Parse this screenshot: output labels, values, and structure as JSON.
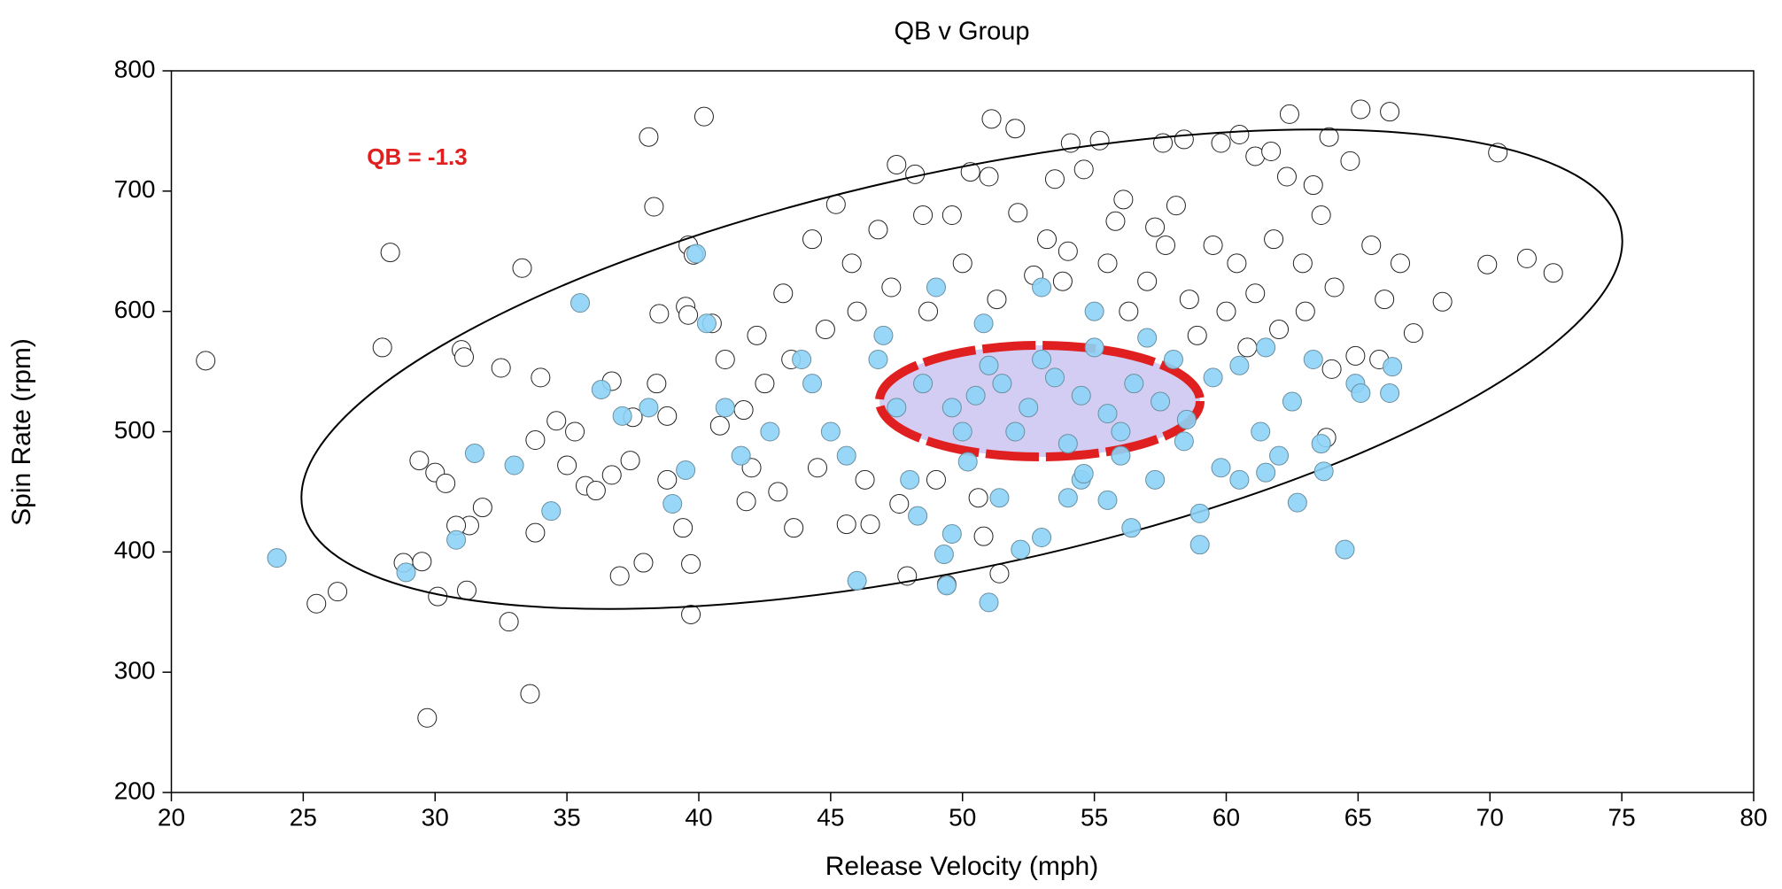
{
  "chart_data": {
    "type": "scatter",
    "title": "QB v Group",
    "xlabel": "Release Velocity (mph)",
    "ylabel": "Spin Rate (rpm)",
    "annotation": "QB = -1.3",
    "xlim": [
      20,
      80
    ],
    "ylim": [
      200,
      800
    ],
    "xticks": [
      20,
      25,
      30,
      35,
      40,
      45,
      50,
      55,
      60,
      65,
      70,
      75,
      80
    ],
    "yticks": [
      200,
      300,
      400,
      500,
      600,
      700,
      800
    ],
    "series": [
      {
        "color": "#ffffff",
        "x": [
          21.3,
          28.3,
          28,
          31,
          31.1,
          33.3,
          29.7,
          33.6,
          25.5,
          26.3,
          32.8,
          30.1,
          29.5,
          28.8,
          31.2,
          38.1,
          40.2,
          38.3,
          39.6,
          39.8,
          51.1,
          52,
          65.1,
          66.2,
          62.4,
          70.3,
          69.9,
          71.4,
          72.4,
          68.2,
          67.1,
          47.5,
          48.2,
          39.7,
          39.7,
          37.9,
          37,
          32.5,
          34,
          29.4,
          30,
          30.4,
          31.8,
          33.8,
          31.3,
          30.8,
          35,
          35.7,
          36.1,
          35.3,
          34.6,
          33.8,
          36.7,
          37.4,
          36.7,
          37.5,
          38.4,
          38.8,
          39.5,
          39.6,
          38.5,
          40.5,
          38.8,
          39.4,
          41.8,
          43.6,
          45.6,
          46.5,
          47.9,
          49.4,
          50.8,
          51.4,
          54.1,
          55.2,
          57.6,
          58.4,
          59.8,
          60.5,
          61.1,
          61.7,
          62.3,
          63.3,
          63.6,
          64.7,
          63.9,
          44.3,
          45.2,
          46.8,
          48.5,
          50.3,
          51,
          52.1,
          53.5,
          54.6,
          56.1,
          57.3,
          58.1,
          59.5,
          60.4,
          61.8,
          62.9,
          64.1,
          65.5,
          66.6,
          65.8,
          64.9,
          64,
          63.8,
          61.1,
          60,
          58.6,
          57,
          55.5,
          54,
          52.7,
          51.3,
          50,
          48.7,
          47.3,
          46,
          44.8,
          43.5,
          42.5,
          41.7,
          40.8,
          42,
          43,
          44.5,
          46.3,
          47.6,
          49,
          50.6,
          53.8,
          56.3,
          58.9,
          60.8,
          62,
          57.7,
          55.8,
          53.2,
          49.6,
          45.8,
          43.2,
          42.2,
          41,
          63,
          66
        ],
        "values": [
          559,
          649,
          570,
          568,
          562,
          636,
          262,
          282,
          357,
          367,
          342,
          363,
          392,
          391,
          368,
          745,
          762,
          687,
          655,
          647,
          760,
          752,
          768,
          766,
          764,
          732,
          639,
          644,
          632,
          608,
          582,
          722,
          714,
          348,
          390,
          391,
          380,
          553,
          545,
          476,
          466,
          457,
          437,
          416,
          422,
          422,
          472,
          455,
          451,
          500,
          509,
          493,
          464,
          476,
          542,
          512,
          540,
          513,
          604,
          597,
          598,
          590,
          460,
          420,
          442,
          420,
          423,
          423,
          380,
          373,
          413,
          382,
          740,
          742,
          740,
          743,
          740,
          747,
          729,
          733,
          712,
          705,
          680,
          725,
          745,
          660,
          689,
          668,
          680,
          716,
          712,
          682,
          710,
          718,
          693,
          670,
          688,
          655,
          640,
          660,
          640,
          620,
          655,
          640,
          560,
          563,
          552,
          495,
          615,
          600,
          610,
          625,
          640,
          650,
          630,
          610,
          640,
          600,
          620,
          600,
          585,
          560,
          540,
          518,
          505,
          470,
          450,
          470,
          460,
          440,
          460,
          445,
          625,
          600,
          580,
          570,
          585,
          655,
          675,
          660,
          680,
          640,
          615,
          580,
          560,
          600,
          610
        ]
      },
      {
        "color": "#8dd3f7",
        "x": [
          24,
          35.5,
          28.9,
          30.8,
          31.5,
          33,
          34.4,
          37.1,
          36.3,
          38.1,
          39,
          39.5,
          40.3,
          39.9,
          41,
          41.6,
          42.7,
          43.9,
          44.3,
          45,
          46,
          45.6,
          46.8,
          47.5,
          48,
          48.3,
          49.3,
          49.4,
          49.6,
          50.2,
          51,
          51.4,
          52.2,
          53,
          54,
          54.5,
          55.5,
          56.4,
          57.3,
          58.4,
          59,
          59,
          59.8,
          60.5,
          61.3,
          61.5,
          62,
          62.5,
          62.7,
          63.3,
          63.6,
          63.7,
          64.5,
          64.9,
          65.1,
          66.2,
          66.3,
          57,
          55,
          53,
          50.8,
          49,
          47,
          48.5,
          49.6,
          50.5,
          51.5,
          52.5,
          53.5,
          54.5,
          55.5,
          56.5,
          57.5,
          58.5,
          59.5,
          60.5,
          61.5,
          52,
          54,
          56,
          50,
          51,
          53,
          55,
          58,
          56,
          54.6
        ],
        "values": [
          395,
          607,
          383,
          410,
          482,
          472,
          434,
          513,
          535,
          520,
          440,
          468,
          590,
          648,
          520,
          480,
          500,
          560,
          540,
          500,
          376,
          480,
          560,
          520,
          460,
          430,
          398,
          372,
          415,
          475,
          358,
          445,
          402,
          412,
          445,
          460,
          443,
          420,
          460,
          492,
          406,
          432,
          470,
          460,
          500,
          466,
          480,
          525,
          441,
          560,
          490,
          467,
          402,
          540,
          532,
          532,
          554,
          578,
          600,
          620,
          590,
          620,
          580,
          540,
          520,
          530,
          540,
          520,
          545,
          530,
          515,
          540,
          525,
          510,
          545,
          555,
          570,
          500,
          490,
          500,
          500,
          555,
          560,
          570,
          560,
          480,
          465
        ]
      }
    ]
  }
}
